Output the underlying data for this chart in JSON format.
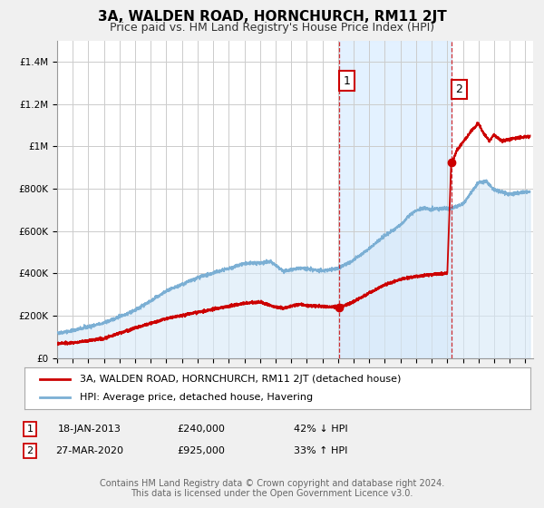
{
  "title": "3A, WALDEN ROAD, HORNCHURCH, RM11 2JT",
  "subtitle": "Price paid vs. HM Land Registry's House Price Index (HPI)",
  "ylim": [
    0,
    1500000
  ],
  "xlim_start": 1995.0,
  "xlim_end": 2025.5,
  "yticks": [
    0,
    200000,
    400000,
    600000,
    800000,
    1000000,
    1200000,
    1400000
  ],
  "ytick_labels": [
    "£0",
    "£200K",
    "£400K",
    "£600K",
    "£800K",
    "£1M",
    "£1.2M",
    "£1.4M"
  ],
  "xticks": [
    1995,
    1996,
    1997,
    1998,
    1999,
    2000,
    2001,
    2002,
    2003,
    2004,
    2005,
    2006,
    2007,
    2008,
    2009,
    2010,
    2011,
    2012,
    2013,
    2014,
    2015,
    2016,
    2017,
    2018,
    2019,
    2020,
    2021,
    2022,
    2023,
    2024,
    2025
  ],
  "grid_color": "#cccccc",
  "bg_color": "#f0f0f0",
  "plot_bg_color": "#ffffff",
  "hpi_line_color": "#7bafd4",
  "hpi_fill_color": "#d6e8f7",
  "price_line_color": "#cc0000",
  "event1_x": 2013.05,
  "event1_y": 240000,
  "event1_label": "1",
  "event1_date": "18-JAN-2013",
  "event1_price": "£240,000",
  "event1_hpi": "42% ↓ HPI",
  "event2_x": 2020.25,
  "event2_y": 925000,
  "event2_label": "2",
  "event2_date": "27-MAR-2020",
  "event2_price": "£925,000",
  "event2_hpi": "33% ↑ HPI",
  "vline_color": "#cc0000",
  "highlight_color": "#ddeeff",
  "legend_label_price": "3A, WALDEN ROAD, HORNCHURCH, RM11 2JT (detached house)",
  "legend_label_hpi": "HPI: Average price, detached house, Havering",
  "footer_line1": "Contains HM Land Registry data © Crown copyright and database right 2024.",
  "footer_line2": "This data is licensed under the Open Government Licence v3.0.",
  "title_fontsize": 11,
  "subtitle_fontsize": 9,
  "tick_fontsize": 7.5,
  "legend_fontsize": 8,
  "footer_fontsize": 7,
  "table_fontsize": 8
}
